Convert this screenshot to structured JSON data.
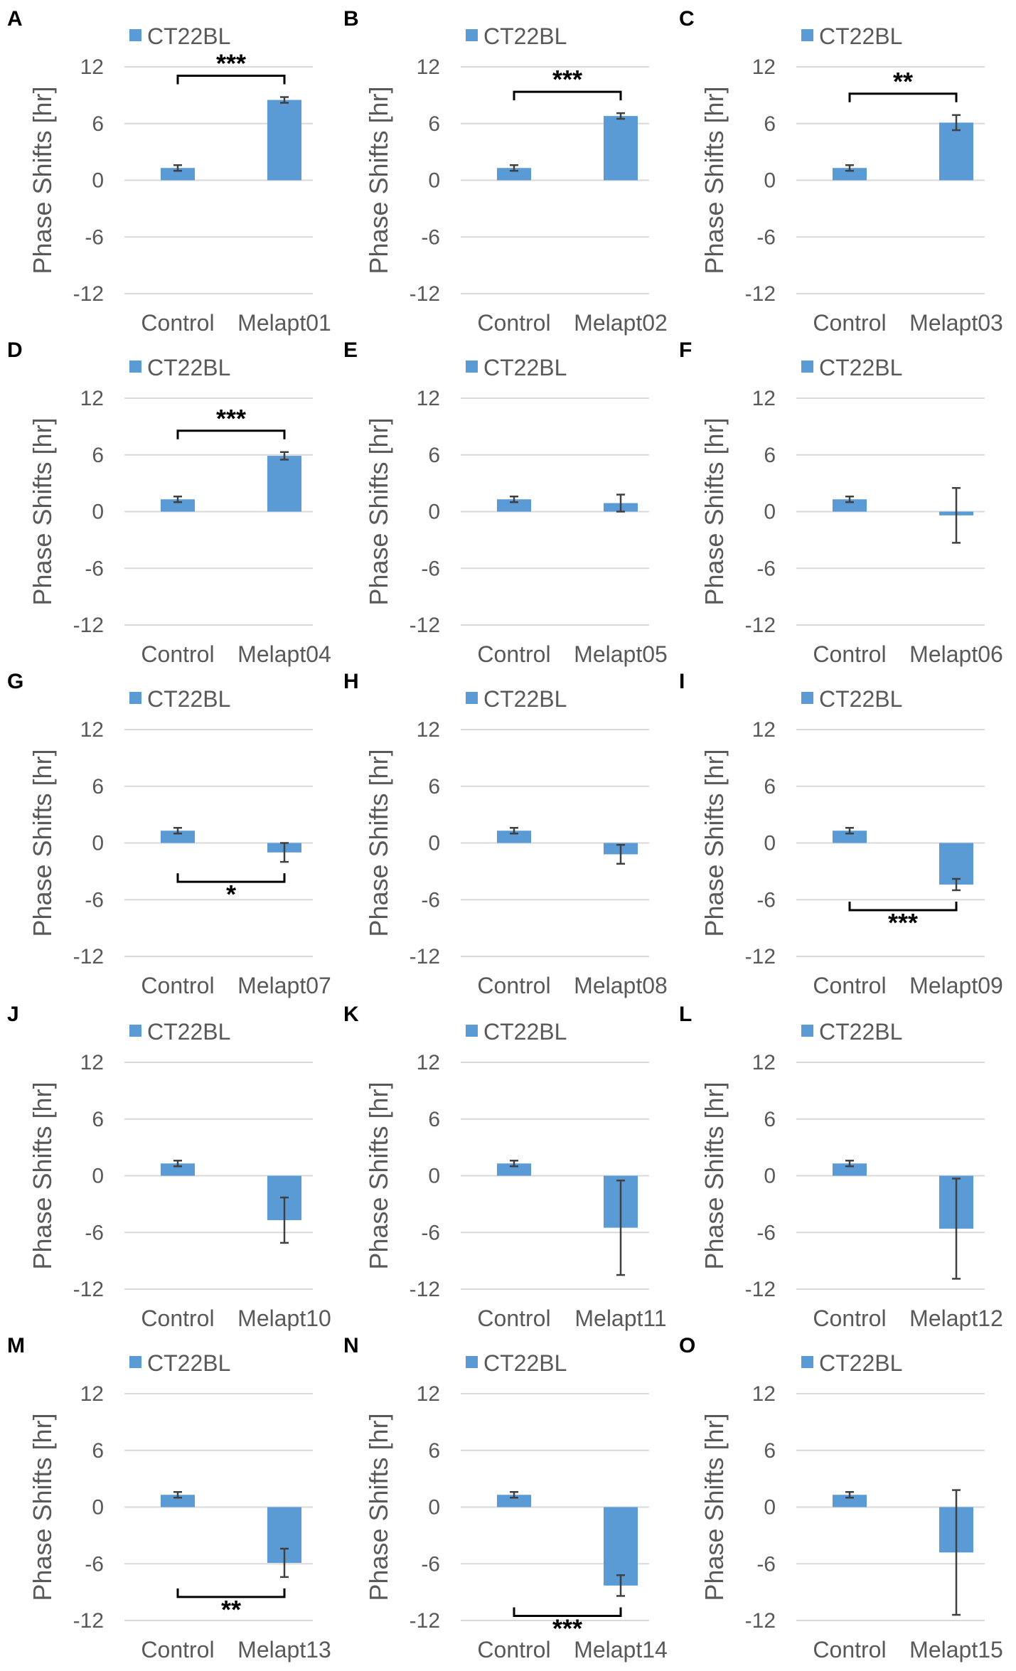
{
  "chart_data": [
    {
      "panel": "A",
      "type": "bar",
      "legend": "CT22BL",
      "color": "#5b9bd5",
      "ylabel": "Phase Shifts [hr]",
      "yticks": [
        12,
        6,
        0,
        -6,
        -12
      ],
      "ylim": [
        -12,
        12
      ],
      "categories": [
        "Control",
        "Melapt01"
      ],
      "values": [
        1.3,
        8.5
      ],
      "errors": [
        0.3,
        0.3
      ],
      "significance": "***",
      "sig_position": "above"
    },
    {
      "panel": "B",
      "type": "bar",
      "legend": "CT22BL",
      "color": "#5b9bd5",
      "ylabel": "Phase Shifts [hr]",
      "yticks": [
        12,
        6,
        0,
        -6,
        -12
      ],
      "ylim": [
        -12,
        12
      ],
      "categories": [
        "Control",
        "Melapt02"
      ],
      "values": [
        1.3,
        6.8
      ],
      "errors": [
        0.3,
        0.3
      ],
      "significance": "***",
      "sig_position": "above"
    },
    {
      "panel": "C",
      "type": "bar",
      "legend": "CT22BL",
      "color": "#5b9bd5",
      "ylabel": "Phase Shifts [hr]",
      "yticks": [
        12,
        6,
        0,
        -6,
        -12
      ],
      "ylim": [
        -12,
        12
      ],
      "categories": [
        "Control",
        "Melapt03"
      ],
      "values": [
        1.3,
        6.1
      ],
      "errors": [
        0.3,
        0.8
      ],
      "significance": "**",
      "sig_position": "above"
    },
    {
      "panel": "D",
      "type": "bar",
      "legend": "CT22BL",
      "color": "#5b9bd5",
      "ylabel": "Phase Shifts [hr]",
      "yticks": [
        12,
        6,
        0,
        -6,
        -12
      ],
      "ylim": [
        -12,
        12
      ],
      "categories": [
        "Control",
        "Melapt04"
      ],
      "values": [
        1.3,
        5.9
      ],
      "errors": [
        0.3,
        0.4
      ],
      "significance": "***",
      "sig_position": "above"
    },
    {
      "panel": "E",
      "type": "bar",
      "legend": "CT22BL",
      "color": "#5b9bd5",
      "ylabel": "Phase Shifts [hr]",
      "yticks": [
        12,
        6,
        0,
        -6,
        -12
      ],
      "ylim": [
        -12,
        12
      ],
      "categories": [
        "Control",
        "Melapt05"
      ],
      "values": [
        1.3,
        0.9
      ],
      "errors": [
        0.3,
        0.9
      ],
      "significance": "",
      "sig_position": "none"
    },
    {
      "panel": "F",
      "type": "bar",
      "legend": "CT22BL",
      "color": "#5b9bd5",
      "ylabel": "Phase Shifts [hr]",
      "yticks": [
        12,
        6,
        0,
        -6,
        -12
      ],
      "ylim": [
        -12,
        12
      ],
      "categories": [
        "Control",
        "Melapt06"
      ],
      "values": [
        1.3,
        -0.4
      ],
      "errors": [
        0.3,
        2.9
      ],
      "significance": "",
      "sig_position": "none"
    },
    {
      "panel": "G",
      "type": "bar",
      "legend": "CT22BL",
      "color": "#5b9bd5",
      "ylabel": "Phase Shifts [hr]",
      "yticks": [
        12,
        6,
        0,
        -6,
        -12
      ],
      "ylim": [
        -12,
        12
      ],
      "categories": [
        "Control",
        "Melapt07"
      ],
      "values": [
        1.3,
        -1.0
      ],
      "errors": [
        0.3,
        1.0
      ],
      "significance": "*",
      "sig_position": "below"
    },
    {
      "panel": "H",
      "type": "bar",
      "legend": "CT22BL",
      "color": "#5b9bd5",
      "ylabel": "Phase Shifts [hr]",
      "yticks": [
        12,
        6,
        0,
        -6,
        -12
      ],
      "ylim": [
        -12,
        12
      ],
      "categories": [
        "Control",
        "Melapt08"
      ],
      "values": [
        1.3,
        -1.2
      ],
      "errors": [
        0.3,
        1.0
      ],
      "significance": "",
      "sig_position": "none"
    },
    {
      "panel": "I",
      "type": "bar",
      "legend": "CT22BL",
      "color": "#5b9bd5",
      "ylabel": "Phase Shifts [hr]",
      "yticks": [
        12,
        6,
        0,
        -6,
        -12
      ],
      "ylim": [
        -12,
        12
      ],
      "categories": [
        "Control",
        "Melapt09"
      ],
      "values": [
        1.3,
        -4.4
      ],
      "errors": [
        0.3,
        0.6
      ],
      "significance": "***",
      "sig_position": "below"
    },
    {
      "panel": "J",
      "type": "bar",
      "legend": "CT22BL",
      "color": "#5b9bd5",
      "ylabel": "Phase Shifts [hr]",
      "yticks": [
        12,
        6,
        0,
        -6,
        -12
      ],
      "ylim": [
        -12,
        12
      ],
      "categories": [
        "Control",
        "Melapt10"
      ],
      "values": [
        1.3,
        -4.7
      ],
      "errors": [
        0.3,
        2.4
      ],
      "significance": "",
      "sig_position": "none"
    },
    {
      "panel": "K",
      "type": "bar",
      "legend": "CT22BL",
      "color": "#5b9bd5",
      "ylabel": "Phase Shifts [hr]",
      "yticks": [
        12,
        6,
        0,
        -6,
        -12
      ],
      "ylim": [
        -12,
        12
      ],
      "categories": [
        "Control",
        "Melapt11"
      ],
      "values": [
        1.3,
        -5.5
      ],
      "errors": [
        0.3,
        5.0
      ],
      "significance": "",
      "sig_position": "none"
    },
    {
      "panel": "L",
      "type": "bar",
      "legend": "CT22BL",
      "color": "#5b9bd5",
      "ylabel": "Phase Shifts [hr]",
      "yticks": [
        12,
        6,
        0,
        -6,
        -12
      ],
      "ylim": [
        -12,
        12
      ],
      "categories": [
        "Control",
        "Melapt12"
      ],
      "values": [
        1.3,
        -5.6
      ],
      "errors": [
        0.3,
        5.3
      ],
      "significance": "",
      "sig_position": "none"
    },
    {
      "panel": "M",
      "type": "bar",
      "legend": "CT22BL",
      "color": "#5b9bd5",
      "ylabel": "Phase Shifts [hr]",
      "yticks": [
        12,
        6,
        0,
        -6,
        -12
      ],
      "ylim": [
        -12,
        12
      ],
      "categories": [
        "Control",
        "Melapt13"
      ],
      "values": [
        1.3,
        -5.9
      ],
      "errors": [
        0.3,
        1.5
      ],
      "significance": "**",
      "sig_position": "below"
    },
    {
      "panel": "N",
      "type": "bar",
      "legend": "CT22BL",
      "color": "#5b9bd5",
      "ylabel": "Phase Shifts [hr]",
      "yticks": [
        12,
        6,
        0,
        -6,
        -12
      ],
      "ylim": [
        -12,
        12
      ],
      "categories": [
        "Control",
        "Melapt14"
      ],
      "values": [
        1.3,
        -8.3
      ],
      "errors": [
        0.3,
        1.1
      ],
      "significance": "***",
      "sig_position": "below"
    },
    {
      "panel": "O",
      "type": "bar",
      "legend": "CT22BL",
      "color": "#5b9bd5",
      "ylabel": "Phase Shifts [hr]",
      "yticks": [
        12,
        6,
        0,
        -6,
        -12
      ],
      "ylim": [
        -12,
        12
      ],
      "categories": [
        "Control",
        "Melapt15"
      ],
      "values": [
        1.3,
        -4.8
      ],
      "errors": [
        0.3,
        6.6
      ],
      "significance": "",
      "sig_position": "none"
    }
  ]
}
